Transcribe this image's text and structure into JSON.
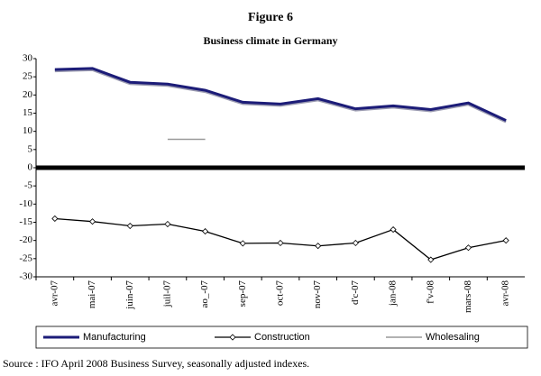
{
  "chart_data": {
    "type": "line",
    "title": "Figure 6",
    "subtitle": "Business climate in Germany",
    "categories": [
      "avr-07",
      "mai-07",
      "juin-07",
      "juil-07",
      "ao_-07",
      "sep-07",
      "oct-07",
      "nov-07",
      "d'c-07",
      "jan-08",
      "f'v-08",
      "mars-08",
      "avr-08"
    ],
    "series": [
      {
        "name": "Manufacturing",
        "color": "#1c1c78",
        "values": [
          27,
          27.3,
          23.5,
          23,
          21.3,
          18,
          17.5,
          19,
          16.2,
          17,
          16,
          17.8,
          13
        ]
      },
      {
        "name": "Construction",
        "color": "#000000",
        "values": [
          -14,
          -14.8,
          -16,
          -15.5,
          -17.5,
          -20.8,
          -20.7,
          -21.5,
          -20.7,
          -17,
          -25.3,
          -22,
          -20
        ]
      },
      {
        "name": "Wholesaling",
        "color": "#999999",
        "values": [
          null,
          null,
          null,
          7.8,
          7.8,
          null,
          null,
          null,
          null,
          null,
          null,
          null,
          null
        ]
      }
    ],
    "ylim": [
      -30,
      30
    ],
    "yticks": [
      -30,
      -25,
      -20,
      -15,
      -10,
      -5,
      0,
      5,
      10,
      15,
      20,
      25,
      30
    ],
    "legend": "bottom",
    "source": "Source : IFO April 2008 Business Survey, seasonally adjusted indexes."
  }
}
